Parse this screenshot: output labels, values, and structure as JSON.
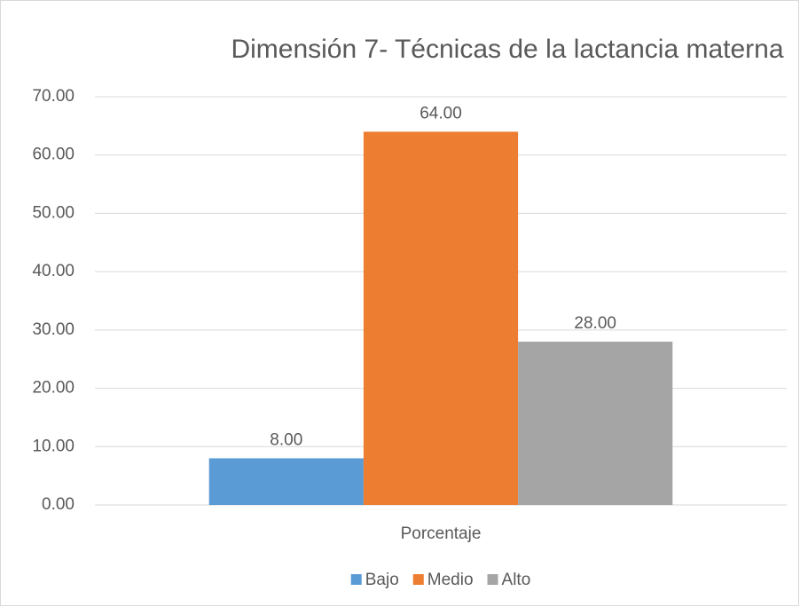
{
  "chart_data": {
    "type": "bar",
    "title": "Dimensión 7- Técnicas de la lactancia materna",
    "categories": [
      "Porcentaje"
    ],
    "series": [
      {
        "name": "Bajo",
        "color": "#5b9bd5",
        "values": [
          8
        ],
        "value_labels": [
          "8.00"
        ]
      },
      {
        "name": "Medio",
        "color": "#ed7d31",
        "values": [
          64
        ],
        "value_labels": [
          "64.00"
        ]
      },
      {
        "name": "Alto",
        "color": "#a5a5a5",
        "values": [
          28
        ],
        "value_labels": [
          "28.00"
        ]
      }
    ],
    "ylim": [
      0,
      70
    ],
    "yticks": [
      {
        "value": 0,
        "label": "0.00"
      },
      {
        "value": 10,
        "label": "10.00"
      },
      {
        "value": 20,
        "label": "20.00"
      },
      {
        "value": 30,
        "label": "30.00"
      },
      {
        "value": 40,
        "label": "40.00"
      },
      {
        "value": 50,
        "label": "50.00"
      },
      {
        "value": 60,
        "label": "60.00"
      },
      {
        "value": 70,
        "label": "70.00"
      }
    ],
    "grid": true,
    "legend": "bottom"
  }
}
